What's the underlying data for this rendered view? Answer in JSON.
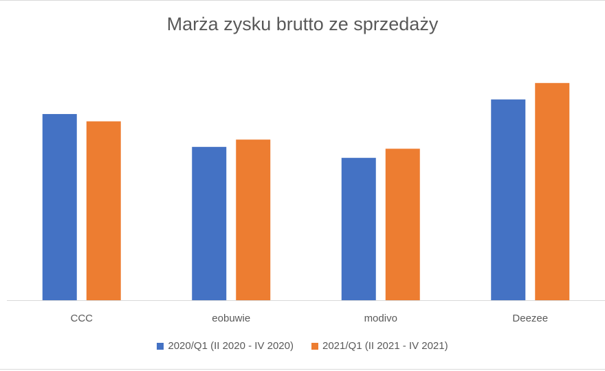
{
  "chart_data": {
    "type": "bar",
    "title": "Marża zysku brutto ze sprzedaży",
    "categories": [
      "CCC",
      "eobuwie",
      "modivo",
      "Deezee"
    ],
    "series": [
      {
        "name": "2020/Q1 (II 2020 - IV 2020)",
        "color": "#4472c4",
        "values": [
          51,
          42,
          39,
          55
        ]
      },
      {
        "name": "2021/Q1 (II 2021 - IV 2021)",
        "color": "#ed7d31",
        "values": [
          49,
          44,
          41.5,
          59.5
        ]
      }
    ],
    "ylim": [
      0,
      70
    ],
    "grid": false,
    "legend_position": "bottom"
  }
}
